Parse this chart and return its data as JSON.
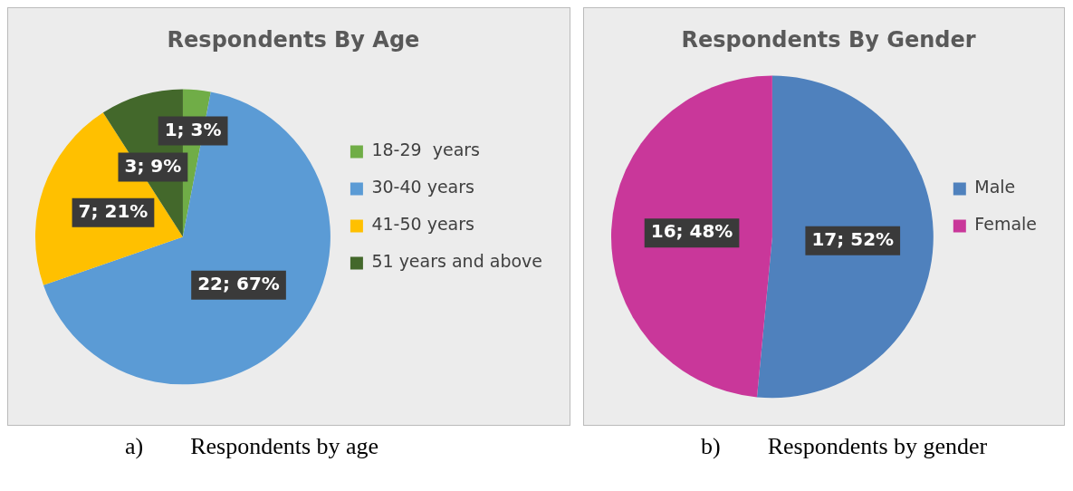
{
  "chart_data": [
    {
      "type": "pie",
      "title": "Respondents By Age",
      "categories": [
        "18-29  years",
        "30-40 years",
        "41-50 years",
        "51 years and above"
      ],
      "values": [
        1,
        22,
        7,
        3
      ],
      "value_labels": [
        "1; 3%",
        "22; 67%",
        "7; 21%",
        "3; 9%"
      ],
      "colors": [
        "#70ad47",
        "#5b9bd5",
        "#ffc000",
        "#43682b"
      ],
      "legend": "right",
      "annotations": [
        "a)        Respondents by age"
      ]
    },
    {
      "type": "pie",
      "title": "Respondents By Gender",
      "categories": [
        "Male",
        "Female"
      ],
      "values": [
        17,
        16
      ],
      "value_labels": [
        "17; 52%",
        "16; 48%"
      ],
      "colors": [
        "#4f81bd",
        "#c9379a"
      ],
      "legend": "right",
      "annotations": [
        "b)        Respondents by gender"
      ]
    }
  ]
}
